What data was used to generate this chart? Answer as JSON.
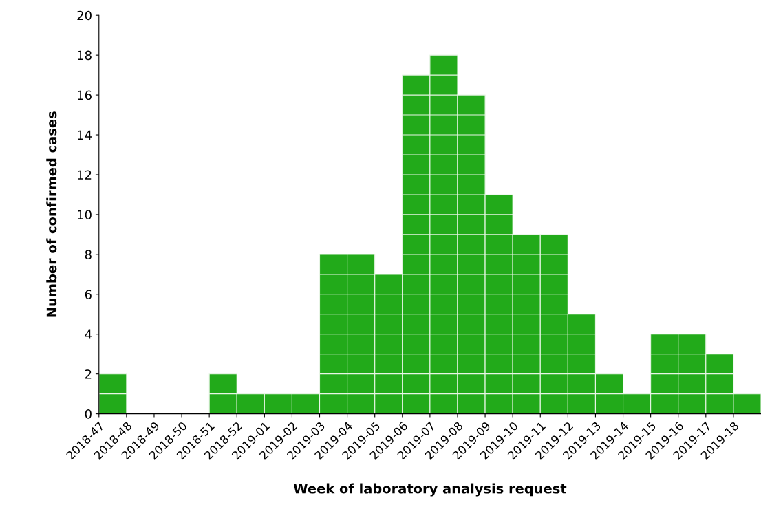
{
  "chart_data": {
    "type": "bar",
    "xlabel": "Week of laboratory analysis request",
    "ylabel": "Number of confirmed cases",
    "categories": [
      "2018-47",
      "2018-48",
      "2018-49",
      "2018-50",
      "2018-51",
      "2018-52",
      "2019-01",
      "2019-02",
      "2019-03",
      "2019-04",
      "2019-05",
      "2019-06",
      "2019-07",
      "2019-08",
      "2019-09",
      "2019-10",
      "2019-11",
      "2019-12",
      "2019-13",
      "2019-14",
      "2019-15",
      "2019-16",
      "2019-17",
      "2019-18"
    ],
    "values": [
      2,
      0,
      0,
      0,
      2,
      1,
      1,
      1,
      8,
      8,
      7,
      17,
      18,
      16,
      11,
      9,
      9,
      5,
      2,
      1,
      4,
      4,
      3,
      1
    ],
    "color": "#22aa1a",
    "ylim": [
      0,
      20
    ],
    "yticks": [
      0,
      2,
      4,
      6,
      8,
      10,
      12,
      14,
      16,
      18,
      20
    ],
    "grid": false,
    "legend": false
  }
}
